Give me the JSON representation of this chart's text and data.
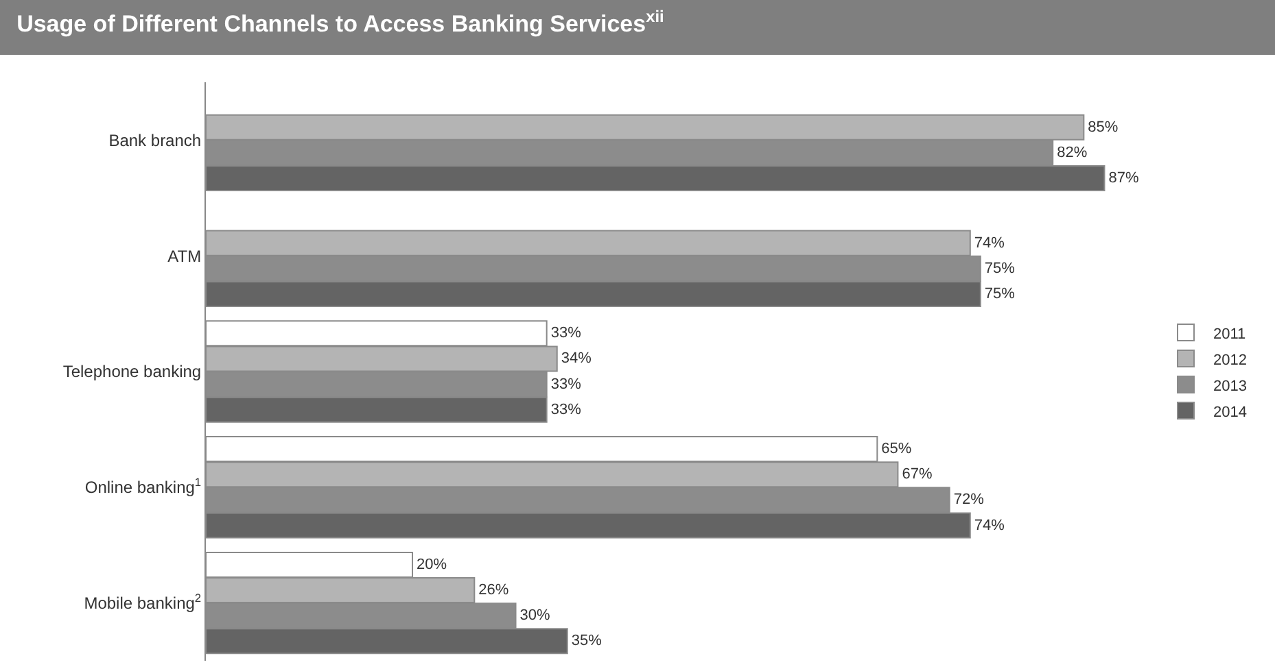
{
  "chart_data": {
    "type": "bar",
    "orientation": "horizontal",
    "title": "Usage of Different Channels to Access Banking Services$^{xii}$",
    "categories": [
      "Bank branch",
      "ATM",
      "Telephone banking",
      "Online banking$^{1}$",
      "Mobile banking$^{2}$"
    ],
    "series": [
      {
        "name": "2011",
        "color": "#ffffff",
        "values": [
          null,
          null,
          33,
          65,
          20
        ],
        "value_labels": [
          null,
          null,
          "33%",
          "65%",
          "20%"
        ]
      },
      {
        "name": "2012",
        "color": "#b4b4b4",
        "values": [
          85,
          74,
          34,
          67,
          26
        ],
        "value_labels": [
          "85%",
          "74%",
          "34%",
          "67%",
          "26%"
        ]
      },
      {
        "name": "2013",
        "color": "#8c8c8c",
        "values": [
          82,
          75,
          33,
          72,
          30
        ],
        "value_labels": [
          "82%",
          "75%",
          "33%",
          "72%",
          "30%"
        ]
      },
      {
        "name": "2014",
        "color": "#646464",
        "values": [
          87,
          75,
          33,
          74,
          35
        ],
        "value_labels": [
          "87%",
          "75%",
          "33%",
          "74%",
          "35%"
        ]
      }
    ],
    "legend": "right"
  }
}
